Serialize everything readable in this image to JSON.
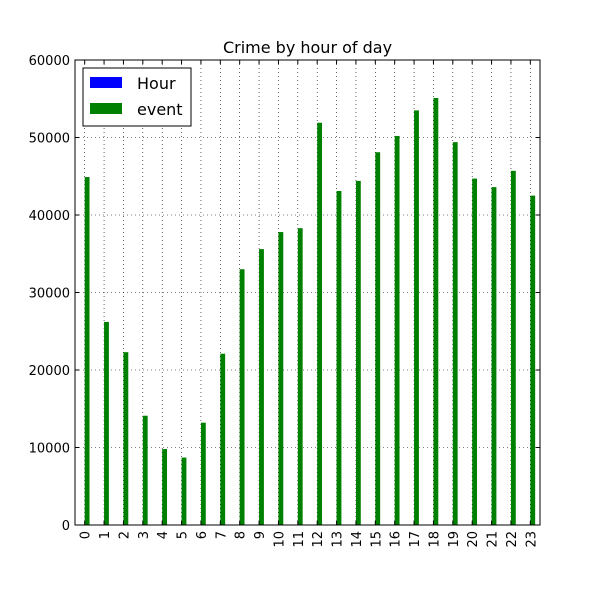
{
  "chart_data": {
    "type": "bar",
    "title": "Crime by hour of day",
    "categories": [
      "0",
      "1",
      "2",
      "3",
      "4",
      "5",
      "6",
      "7",
      "8",
      "9",
      "10",
      "11",
      "12",
      "13",
      "14",
      "15",
      "16",
      "17",
      "18",
      "19",
      "20",
      "21",
      "22",
      "23"
    ],
    "series": [
      {
        "name": "Hour",
        "color": "#0000ff",
        "values": [
          0,
          0,
          0,
          0,
          0,
          0,
          0,
          0,
          0,
          0,
          0,
          0,
          0,
          0,
          0,
          0,
          0,
          0,
          0,
          0,
          0,
          0,
          0,
          0
        ]
      },
      {
        "name": "event",
        "color": "#008000",
        "values": [
          44900,
          26200,
          22300,
          14100,
          9800,
          8700,
          13200,
          22100,
          33000,
          35600,
          37800,
          38300,
          51900,
          43100,
          44400,
          48100,
          50200,
          53500,
          55100,
          49400,
          44700,
          43600,
          45700,
          42500
        ]
      }
    ],
    "xlabel": "",
    "ylabel": "",
    "ylim": [
      0,
      60000
    ],
    "yticks": [
      0,
      10000,
      20000,
      30000,
      40000,
      50000,
      60000
    ],
    "grid": true,
    "legend_position": "top-left"
  }
}
